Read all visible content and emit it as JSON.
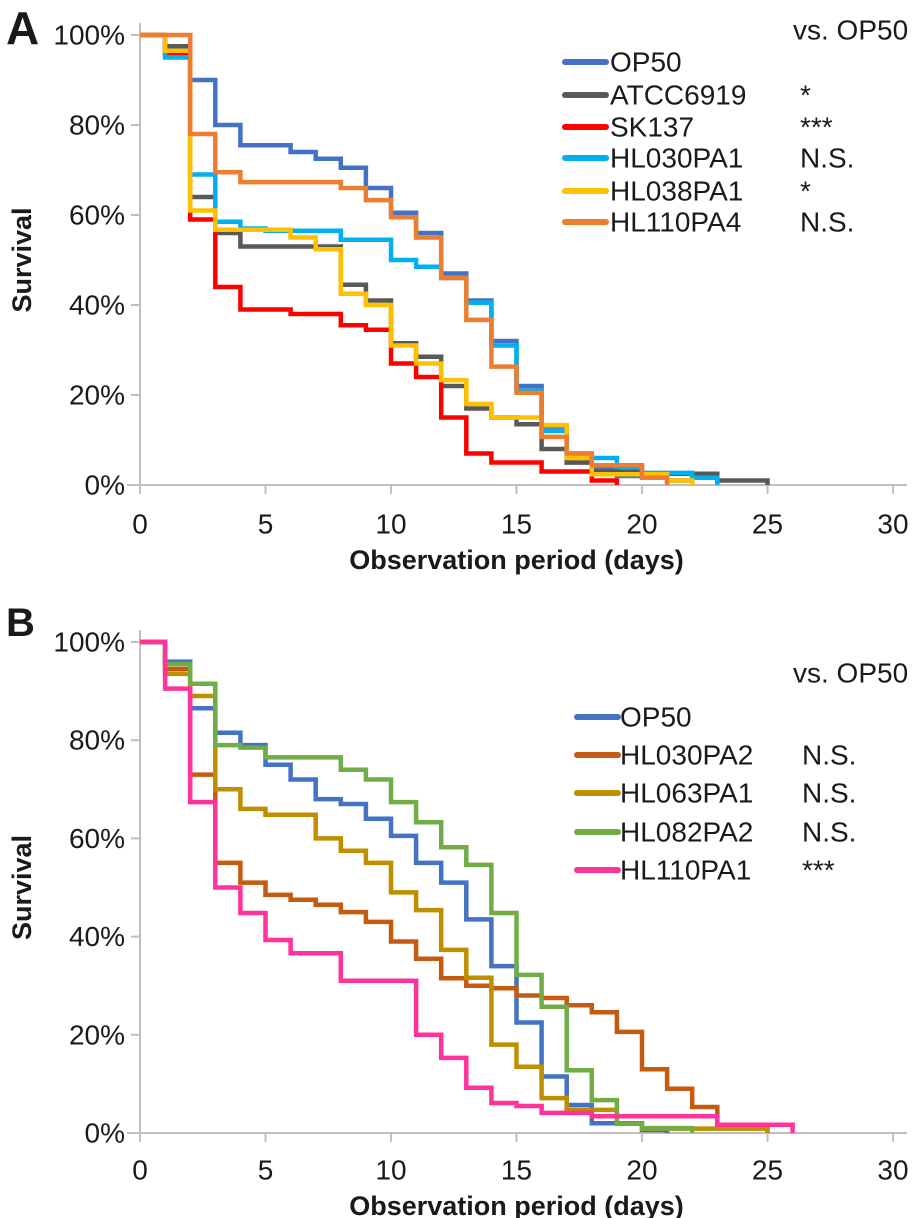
{
  "figure": {
    "y_axis_title": "Survival",
    "x_axis_title": "Observation period (days)",
    "comparison_header": "vs. OP50"
  },
  "chart_data": [
    {
      "type": "line",
      "subtype": "kaplan-meier-step",
      "panel_letter": "A",
      "title": "",
      "xlabel": "Observation period (days)",
      "ylabel": "Survival",
      "xlim": [
        0,
        30
      ],
      "ylim": [
        0,
        100
      ],
      "x_ticks": [
        0,
        5,
        10,
        15,
        20,
        25,
        30
      ],
      "y_tick_labels": [
        "100%",
        "80%",
        "60%",
        "40%",
        "20%",
        "0%"
      ],
      "grid": false,
      "legend_position": "upper right",
      "legend_note": "vs. OP50",
      "units": "steps are [day, percent surviving]",
      "series": [
        {
          "name": "OP50",
          "color": "#4472C4",
          "significance_vs_op50": "",
          "steps": [
            [
              0,
              100
            ],
            [
              1,
              96
            ],
            [
              2,
              90
            ],
            [
              3,
              80
            ],
            [
              4,
              75.5
            ],
            [
              6,
              74
            ],
            [
              7,
              72.5
            ],
            [
              8,
              70.5
            ],
            [
              9,
              66
            ],
            [
              10,
              60.5
            ],
            [
              11,
              56
            ],
            [
              12,
              47
            ],
            [
              13,
              41
            ],
            [
              14,
              32
            ],
            [
              15,
              22
            ],
            [
              16,
              13
            ],
            [
              17,
              5
            ],
            [
              18,
              3.5
            ],
            [
              19,
              2
            ],
            [
              21,
              1
            ],
            [
              22,
              0
            ]
          ]
        },
        {
          "name": "ATCC6919",
          "color": "#595959",
          "significance_vs_op50": "*",
          "steps": [
            [
              0,
              100
            ],
            [
              1,
              97.5
            ],
            [
              2,
              64
            ],
            [
              3,
              56
            ],
            [
              4,
              53
            ],
            [
              8,
              44.5
            ],
            [
              9,
              41
            ],
            [
              10,
              31.5
            ],
            [
              11,
              28.5
            ],
            [
              12,
              22
            ],
            [
              13,
              17
            ],
            [
              14,
              15
            ],
            [
              15,
              13.5
            ],
            [
              16,
              8
            ],
            [
              17,
              5
            ],
            [
              18,
              3
            ],
            [
              20,
              2.5
            ],
            [
              23,
              1
            ],
            [
              25,
              0
            ]
          ]
        },
        {
          "name": "SK137",
          "color": "#FF0000",
          "significance_vs_op50": "***",
          "steps": [
            [
              0,
              100
            ],
            [
              1,
              96
            ],
            [
              2,
              59
            ],
            [
              3,
              44
            ],
            [
              4,
              39
            ],
            [
              6,
              38
            ],
            [
              8,
              35.5
            ],
            [
              9,
              34.5
            ],
            [
              10,
              27
            ],
            [
              11,
              24
            ],
            [
              12,
              15
            ],
            [
              13,
              7
            ],
            [
              14,
              5
            ],
            [
              16,
              3
            ],
            [
              18,
              1
            ],
            [
              19,
              0
            ]
          ]
        },
        {
          "name": "HL030PA1",
          "color": "#00B0F0",
          "significance_vs_op50": "N.S.",
          "steps": [
            [
              0,
              100
            ],
            [
              1,
              95
            ],
            [
              2,
              69
            ],
            [
              3,
              58.5
            ],
            [
              4,
              57
            ],
            [
              5,
              56.5
            ],
            [
              8,
              54.5
            ],
            [
              10,
              50
            ],
            [
              11,
              48.5
            ],
            [
              12,
              46
            ],
            [
              13,
              40.5
            ],
            [
              14,
              31
            ],
            [
              15,
              21
            ],
            [
              16,
              12
            ],
            [
              17,
              7
            ],
            [
              18,
              6
            ],
            [
              19,
              4
            ],
            [
              20,
              2.7
            ],
            [
              22,
              1.6
            ],
            [
              23,
              0
            ]
          ]
        },
        {
          "name": "HL038PA1",
          "color": "#FFC000",
          "significance_vs_op50": "*",
          "steps": [
            [
              0,
              100
            ],
            [
              1,
              96.5
            ],
            [
              2,
              61
            ],
            [
              3,
              56.7
            ],
            [
              6,
              55
            ],
            [
              7,
              52.4
            ],
            [
              8,
              42.5
            ],
            [
              9,
              40
            ],
            [
              10,
              31
            ],
            [
              11,
              27
            ],
            [
              12,
              23.3
            ],
            [
              13,
              18
            ],
            [
              14,
              15
            ],
            [
              16,
              13.3
            ],
            [
              17,
              6
            ],
            [
              18,
              2.4
            ],
            [
              21,
              1
            ],
            [
              22,
              0
            ]
          ]
        },
        {
          "name": "HL110PA4",
          "color": "#ED7D31",
          "significance_vs_op50": "N.S.",
          "steps": [
            [
              0,
              100
            ],
            [
              2,
              78
            ],
            [
              3,
              69.5
            ],
            [
              4,
              67.3
            ],
            [
              8,
              66
            ],
            [
              9,
              63.3
            ],
            [
              10,
              59.5
            ],
            [
              11,
              55
            ],
            [
              12,
              46
            ],
            [
              13,
              36.7
            ],
            [
              14,
              26.3
            ],
            [
              15,
              20.5
            ],
            [
              16,
              10.7
            ],
            [
              17,
              7
            ],
            [
              18,
              4.4
            ],
            [
              20,
              1.6
            ],
            [
              21,
              0
            ]
          ]
        }
      ]
    },
    {
      "type": "line",
      "subtype": "kaplan-meier-step",
      "panel_letter": "B",
      "title": "",
      "xlabel": "Observation period (days)",
      "ylabel": "Survival",
      "xlim": [
        0,
        30
      ],
      "ylim": [
        0,
        100
      ],
      "x_ticks": [
        0,
        5,
        10,
        15,
        20,
        25,
        30
      ],
      "y_tick_labels": [
        "100%",
        "80%",
        "60%",
        "40%",
        "20%",
        "0%"
      ],
      "grid": false,
      "legend_position": "upper right",
      "legend_note": "vs. OP50",
      "units": "steps are [day, percent surviving]",
      "series": [
        {
          "name": "OP50",
          "color": "#4472C4",
          "significance_vs_op50": "",
          "steps": [
            [
              0,
              100
            ],
            [
              1,
              96
            ],
            [
              2,
              86.5
            ],
            [
              3,
              81.5
            ],
            [
              4,
              79
            ],
            [
              5,
              75
            ],
            [
              6,
              72
            ],
            [
              7,
              68
            ],
            [
              8,
              67
            ],
            [
              9,
              64
            ],
            [
              10,
              60.5
            ],
            [
              11,
              55
            ],
            [
              12,
              51
            ],
            [
              13,
              43.5
            ],
            [
              14,
              34
            ],
            [
              15,
              22.5
            ],
            [
              16,
              11.5
            ],
            [
              17,
              5.7
            ],
            [
              18,
              2
            ],
            [
              20,
              0.6
            ],
            [
              21,
              0
            ]
          ]
        },
        {
          "name": "HL030PA2",
          "color": "#C55A11",
          "significance_vs_op50": "N.S.",
          "steps": [
            [
              0,
              100
            ],
            [
              1,
              94.5
            ],
            [
              2,
              73
            ],
            [
              3,
              55
            ],
            [
              4,
              51
            ],
            [
              5,
              48.5
            ],
            [
              6,
              47.5
            ],
            [
              7,
              46.5
            ],
            [
              8,
              45
            ],
            [
              9,
              43
            ],
            [
              10,
              39
            ],
            [
              11,
              35.5
            ],
            [
              12,
              31.5
            ],
            [
              13,
              30
            ],
            [
              14,
              29.5
            ],
            [
              15,
              28
            ],
            [
              16,
              27.5
            ],
            [
              17,
              26
            ],
            [
              18,
              24.6
            ],
            [
              19,
              20.6
            ],
            [
              20,
              13
            ],
            [
              21,
              9
            ],
            [
              22,
              5.3
            ],
            [
              23,
              1.7
            ],
            [
              25,
              0
            ]
          ]
        },
        {
          "name": "HL063PA1",
          "color": "#BF8F00",
          "significance_vs_op50": "N.S.",
          "steps": [
            [
              0,
              100
            ],
            [
              1,
              93.5
            ],
            [
              2,
              89
            ],
            [
              3,
              70
            ],
            [
              4,
              66
            ],
            [
              5,
              64.8
            ],
            [
              7,
              60
            ],
            [
              8,
              57.5
            ],
            [
              9,
              55
            ],
            [
              10,
              49
            ],
            [
              11,
              45.4
            ],
            [
              12,
              37.3
            ],
            [
              13,
              31.6
            ],
            [
              14,
              18
            ],
            [
              15,
              13.5
            ],
            [
              16,
              7.1
            ],
            [
              17,
              4.7
            ],
            [
              19,
              1.9
            ],
            [
              20,
              0.9
            ],
            [
              25,
              0
            ]
          ]
        },
        {
          "name": "HL082PA2",
          "color": "#70AD47",
          "significance_vs_op50": "N.S.",
          "steps": [
            [
              0,
              100
            ],
            [
              1,
              95.5
            ],
            [
              2,
              91.5
            ],
            [
              3,
              79
            ],
            [
              4,
              78.5
            ],
            [
              5,
              76.5
            ],
            [
              8,
              74
            ],
            [
              9,
              72
            ],
            [
              10,
              67.4
            ],
            [
              11,
              63.3
            ],
            [
              12,
              58.2
            ],
            [
              13,
              54.6
            ],
            [
              14,
              44.8
            ],
            [
              15,
              32.2
            ],
            [
              16,
              25.7
            ],
            [
              17,
              12.8
            ],
            [
              18,
              6.7
            ],
            [
              19,
              1.9
            ],
            [
              20,
              1
            ],
            [
              22,
              0
            ]
          ]
        },
        {
          "name": "HL110PA1",
          "color": "#FF3399",
          "significance_vs_op50": "***",
          "steps": [
            [
              0,
              100
            ],
            [
              1,
              90.5
            ],
            [
              2,
              67.4
            ],
            [
              3,
              50
            ],
            [
              4,
              44.8
            ],
            [
              5,
              39.3
            ],
            [
              6,
              36.6
            ],
            [
              8,
              31
            ],
            [
              11,
              20
            ],
            [
              12,
              15.3
            ],
            [
              13,
              9.2
            ],
            [
              14,
              6.1
            ],
            [
              15,
              5.5
            ],
            [
              16,
              4.1
            ],
            [
              18,
              3.4
            ],
            [
              23,
              1.7
            ],
            [
              26,
              0
            ]
          ]
        }
      ]
    }
  ]
}
